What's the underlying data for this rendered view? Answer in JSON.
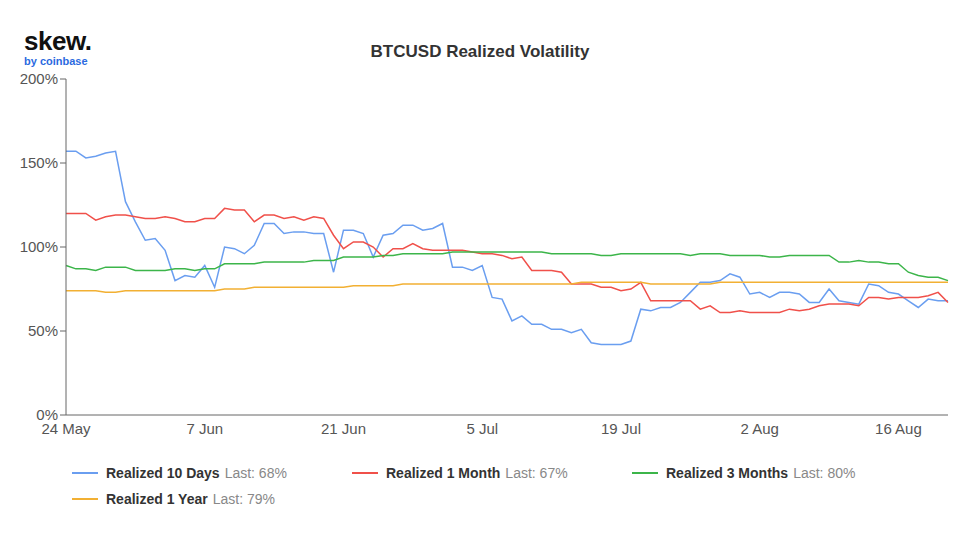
{
  "chart_data": {
    "type": "line",
    "title": "BTCUSD Realized Volatility",
    "brand": "skew.",
    "brand_sub": "by coinbase",
    "categories": [
      "24 May",
      null,
      null,
      null,
      null,
      null,
      null,
      null,
      null,
      null,
      null,
      null,
      null,
      null,
      "7 Jun",
      null,
      null,
      null,
      null,
      null,
      null,
      null,
      null,
      null,
      null,
      null,
      null,
      null,
      "21 Jun",
      null,
      null,
      null,
      null,
      null,
      null,
      null,
      null,
      null,
      null,
      null,
      null,
      null,
      "5 Jul",
      null,
      null,
      null,
      null,
      null,
      null,
      null,
      null,
      null,
      null,
      null,
      null,
      null,
      "19 Jul",
      null,
      null,
      null,
      null,
      null,
      null,
      null,
      null,
      null,
      null,
      null,
      null,
      null,
      "2 Aug",
      null,
      null,
      null,
      null,
      null,
      null,
      null,
      null,
      null,
      null,
      null,
      null,
      null,
      "16 Aug",
      null,
      null,
      null,
      null,
      null
    ],
    "series": [
      {
        "name": "Realized 10 Days",
        "last_label": "Last: 68%",
        "color": "#6a9ef0",
        "values": [
          157,
          157,
          153,
          154,
          156,
          157,
          127,
          115,
          104,
          105,
          98,
          80,
          83,
          82,
          89,
          76,
          100,
          99,
          96,
          101,
          114,
          114,
          108,
          109,
          109,
          108,
          108,
          85,
          110,
          110,
          108,
          94,
          107,
          108,
          113,
          113,
          110,
          111,
          114,
          88,
          88,
          86,
          89,
          70,
          69,
          56,
          59,
          54,
          54,
          51,
          51,
          49,
          51,
          43,
          42,
          42,
          42,
          44,
          63,
          62,
          64,
          64,
          67,
          73,
          79,
          79,
          80,
          84,
          82,
          72,
          73,
          70,
          73,
          73,
          72,
          67,
          67,
          75,
          68,
          67,
          66,
          78,
          77,
          73,
          72,
          68,
          64,
          69,
          68,
          68
        ]
      },
      {
        "name": "Realized 1 Month",
        "last_label": "Last: 67%",
        "color": "#f0504a",
        "values": [
          120,
          120,
          120,
          116,
          118,
          119,
          119,
          118,
          117,
          117,
          118,
          117,
          115,
          115,
          117,
          117,
          123,
          122,
          122,
          115,
          119,
          119,
          117,
          118,
          116,
          118,
          117,
          107,
          99,
          103,
          103,
          100,
          94,
          99,
          99,
          102,
          99,
          98,
          98,
          98,
          98,
          97,
          96,
          96,
          95,
          93,
          94,
          86,
          86,
          86,
          85,
          78,
          78,
          78,
          76,
          76,
          74,
          75,
          79,
          68,
          68,
          68,
          68,
          68,
          63,
          65,
          61,
          61,
          62,
          61,
          61,
          61,
          61,
          63,
          62,
          63,
          65,
          66,
          66,
          66,
          65,
          70,
          70,
          69,
          70,
          70,
          70,
          71,
          73,
          67
        ]
      },
      {
        "name": "Realized 3 Months",
        "last_label": "Last: 80%",
        "color": "#3cb54a",
        "values": [
          89,
          87,
          87,
          86,
          88,
          88,
          88,
          86,
          86,
          86,
          86,
          87,
          87,
          86,
          87,
          87,
          90,
          90,
          90,
          90,
          91,
          91,
          91,
          91,
          91,
          92,
          92,
          92,
          94,
          94,
          94,
          94,
          95,
          95,
          96,
          96,
          96,
          96,
          96,
          97,
          97,
          97,
          97,
          97,
          97,
          97,
          97,
          97,
          97,
          96,
          96,
          96,
          96,
          96,
          95,
          95,
          96,
          96,
          96,
          96,
          96,
          96,
          96,
          95,
          96,
          96,
          96,
          95,
          95,
          95,
          95,
          94,
          94,
          95,
          95,
          95,
          95,
          95,
          91,
          91,
          92,
          91,
          91,
          90,
          90,
          85,
          83,
          82,
          82,
          80
        ]
      },
      {
        "name": "Realized 1 Year",
        "last_label": "Last: 79%",
        "color": "#f2b033",
        "values": [
          74,
          74,
          74,
          74,
          73,
          73,
          74,
          74,
          74,
          74,
          74,
          74,
          74,
          74,
          74,
          74,
          75,
          75,
          75,
          76,
          76,
          76,
          76,
          76,
          76,
          76,
          76,
          76,
          76,
          77,
          77,
          77,
          77,
          77,
          78,
          78,
          78,
          78,
          78,
          78,
          78,
          78,
          78,
          78,
          78,
          78,
          78,
          78,
          78,
          78,
          78,
          78,
          79,
          79,
          79,
          79,
          79,
          79,
          79,
          78,
          78,
          78,
          78,
          78,
          78,
          78,
          79,
          79,
          79,
          79,
          79,
          79,
          79,
          79,
          79,
          79,
          79,
          79,
          79,
          79,
          79,
          79,
          79,
          79,
          79,
          79,
          79,
          79,
          79,
          79
        ]
      }
    ],
    "ylim": [
      0,
      200
    ],
    "yticks": [
      {
        "value": 0,
        "label": "0%"
      },
      {
        "value": 50,
        "label": "50%"
      },
      {
        "value": 100,
        "label": "100%"
      },
      {
        "value": 150,
        "label": "150%"
      },
      {
        "value": 200,
        "label": "200%"
      }
    ],
    "grid": false
  }
}
